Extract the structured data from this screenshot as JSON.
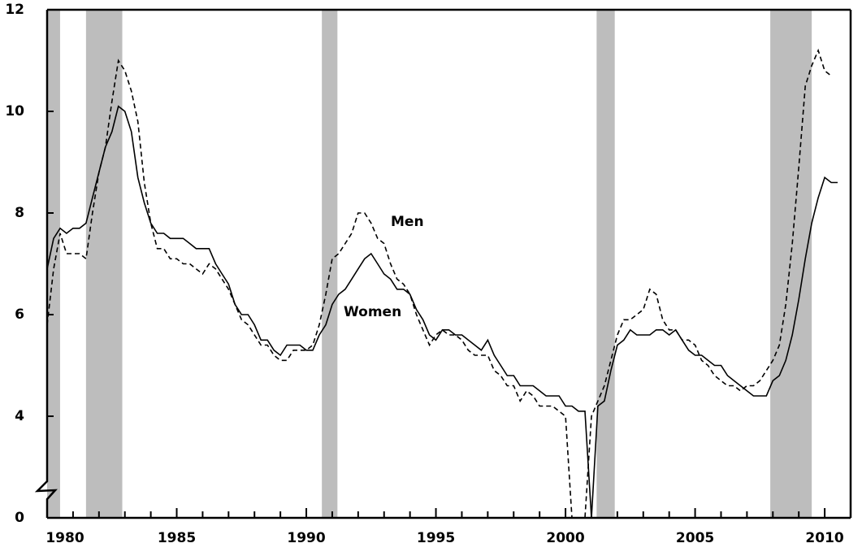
{
  "chart_data": {
    "type": "line",
    "x": [
      1980,
      1980.25,
      1980.5,
      1980.75,
      1981,
      1981.25,
      1981.5,
      1981.75,
      1982,
      1982.25,
      1982.5,
      1982.75,
      1983,
      1983.25,
      1983.5,
      1983.75,
      1984,
      1984.25,
      1984.5,
      1984.75,
      1985,
      1985.25,
      1985.5,
      1985.75,
      1986,
      1986.25,
      1986.5,
      1986.75,
      1987,
      1987.25,
      1987.5,
      1987.75,
      1988,
      1988.25,
      1988.5,
      1988.75,
      1989,
      1989.25,
      1989.5,
      1989.75,
      1990,
      1990.25,
      1990.5,
      1990.75,
      1991,
      1991.25,
      1991.5,
      1991.75,
      1992,
      1992.25,
      1992.5,
      1992.75,
      1993,
      1993.25,
      1993.5,
      1993.75,
      1994,
      1994.25,
      1994.5,
      1994.75,
      1995,
      1995.25,
      1995.5,
      1995.75,
      1996,
      1996.25,
      1996.5,
      1996.75,
      1997,
      1997.25,
      1997.5,
      1997.75,
      1998,
      1998.25,
      1998.5,
      1998.75,
      1999,
      1999.25,
      1999.5,
      1999.75,
      2000,
      2000.25,
      2000.5,
      2000.75,
      2001,
      2001.25,
      2001.5,
      2001.75,
      2002,
      2002.25,
      2002.5,
      2002.75,
      2003,
      2003.25,
      2003.5,
      2003.75,
      2004,
      2004.25,
      2004.5,
      2004.75,
      2005,
      2005.25,
      2005.5,
      2005.75,
      2006,
      2006.25,
      2006.5,
      2006.75,
      2007,
      2007.25,
      2007.5,
      2007.75,
      2008,
      2008.25,
      2008.5,
      2008.75,
      2009,
      2009.25,
      2009.5,
      2009.75,
      2010,
      2010.25,
      2010.5
    ],
    "series": [
      {
        "name": "Men",
        "color": "#000000",
        "dash": "dashed",
        "values": [
          5.8,
          6.9,
          7.6,
          7.2,
          7.2,
          7.2,
          7.1,
          8.0,
          8.8,
          9.3,
          10.2,
          11.0,
          10.8,
          10.4,
          9.8,
          8.6,
          7.8,
          7.3,
          7.3,
          7.1,
          7.1,
          7.0,
          7.0,
          6.9,
          6.8,
          7.0,
          6.9,
          6.7,
          6.5,
          6.2,
          5.9,
          5.8,
          5.6,
          5.4,
          5.4,
          5.2,
          5.1,
          5.1,
          5.3,
          5.3,
          5.3,
          5.4,
          5.8,
          6.4,
          7.1,
          7.2,
          7.4,
          7.6,
          8.0,
          8.0,
          7.8,
          7.5,
          7.4,
          7.0,
          6.7,
          6.6,
          6.4,
          6.0,
          5.7,
          5.4,
          5.6,
          5.7,
          5.6,
          5.6,
          5.5,
          5.3,
          5.2,
          5.2,
          5.2,
          4.9,
          4.8,
          4.6,
          4.6,
          4.3,
          4.5,
          4.4,
          4.2,
          4.2,
          4.2,
          4.1,
          4.0,
          3.9,
          3.8,
          3.9,
          4.0,
          4.3,
          4.6,
          5.1,
          5.6,
          5.9,
          5.9,
          6.0,
          6.1,
          6.5,
          6.4,
          5.9,
          5.7,
          5.7,
          5.5,
          5.5,
          5.4,
          5.1,
          5.0,
          4.8,
          4.7,
          4.6,
          4.6,
          4.5,
          4.6,
          4.6,
          4.7,
          4.9,
          5.1,
          5.4,
          6.2,
          7.4,
          8.9,
          10.5,
          10.9,
          11.2,
          10.8,
          10.7,
          null
        ]
      },
      {
        "name": "Women",
        "color": "#000000",
        "dash": "solid",
        "values": [
          6.9,
          7.5,
          7.7,
          7.6,
          7.7,
          7.7,
          7.8,
          8.3,
          8.8,
          9.3,
          9.6,
          10.1,
          10.0,
          9.6,
          8.7,
          8.2,
          7.8,
          7.6,
          7.6,
          7.5,
          7.5,
          7.5,
          7.4,
          7.3,
          7.3,
          7.3,
          7.0,
          6.8,
          6.6,
          6.2,
          6.0,
          6.0,
          5.8,
          5.5,
          5.5,
          5.3,
          5.2,
          5.4,
          5.4,
          5.4,
          5.3,
          5.3,
          5.6,
          5.8,
          6.2,
          6.4,
          6.5,
          6.7,
          6.9,
          7.1,
          7.2,
          7.0,
          6.8,
          6.7,
          6.5,
          6.5,
          6.4,
          6.1,
          5.9,
          5.6,
          5.5,
          5.7,
          5.7,
          5.6,
          5.6,
          5.5,
          5.4,
          5.3,
          5.5,
          5.2,
          5.0,
          4.8,
          4.8,
          4.6,
          4.6,
          4.6,
          4.5,
          4.4,
          4.4,
          4.4,
          4.2,
          4.2,
          4.1,
          4.1,
          3.9,
          4.2,
          4.3,
          4.9,
          5.4,
          5.5,
          5.7,
          5.6,
          5.6,
          5.6,
          5.7,
          5.7,
          5.6,
          5.7,
          5.5,
          5.3,
          5.2,
          5.2,
          5.1,
          5.0,
          5.0,
          4.8,
          4.7,
          4.6,
          4.5,
          4.4,
          4.4,
          4.4,
          4.7,
          4.8,
          5.1,
          5.6,
          6.3,
          7.1,
          7.8,
          8.3,
          8.7,
          8.6,
          8.6
        ]
      }
    ],
    "recessions": [
      [
        1980,
        1980.5
      ],
      [
        1981.5,
        1982.9
      ],
      [
        1990.6,
        1991.2
      ],
      [
        2001.2,
        2001.9
      ],
      [
        2007.9,
        2009.5
      ]
    ],
    "xlim": [
      1980,
      2011
    ],
    "xticks": [
      1980,
      1985,
      1990,
      1995,
      2000,
      2005,
      2010
    ],
    "xminorticks": [
      1981,
      1982,
      1983,
      1984,
      1986,
      1987,
      1988,
      1989,
      1991,
      1992,
      1993,
      1994,
      1996,
      1997,
      1998,
      1999,
      2001,
      2002,
      2003,
      2004,
      2006,
      2007,
      2008,
      2009
    ],
    "ylim": [
      0,
      12
    ],
    "yticks": [
      0,
      4,
      6,
      8,
      10,
      12
    ],
    "axis_break": [
      0,
      4
    ]
  }
}
